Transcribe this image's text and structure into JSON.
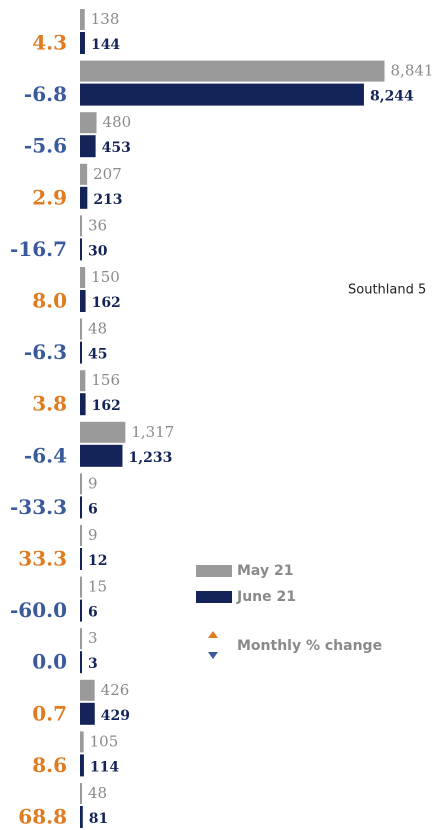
{
  "chart_data": {
    "type": "bar",
    "orientation": "horizontal",
    "xlim": [
      0,
      9000
    ],
    "series": [
      {
        "name": "May 21",
        "color": "#9a9a9a",
        "values": [
          138,
          8841,
          480,
          207,
          36,
          150,
          48,
          156,
          1317,
          9,
          9,
          15,
          3,
          426,
          105,
          48
        ],
        "value_labels": [
          "138",
          "8,841",
          "480",
          "207",
          "36",
          "150",
          "48",
          "156",
          "1,317",
          "9",
          "9",
          "15",
          "3",
          "426",
          "105",
          "48"
        ]
      },
      {
        "name": "June 21",
        "color": "#142458",
        "values": [
          144,
          8244,
          453,
          213,
          30,
          162,
          45,
          162,
          1233,
          6,
          12,
          6,
          3,
          429,
          114,
          81
        ],
        "value_labels": [
          "144",
          "8,244",
          "453",
          "213",
          "30",
          "162",
          "45",
          "162",
          "1,233",
          "6",
          "12",
          "6",
          "3",
          "429",
          "114",
          "81"
        ]
      }
    ],
    "change": {
      "name": "Monthly % change",
      "positive_color": "#e07b20",
      "negative_color": "#3a5a9c",
      "values": [
        4.3,
        -6.8,
        -5.6,
        2.9,
        -16.7,
        8.0,
        -6.3,
        3.8,
        -6.4,
        -33.3,
        33.3,
        -60.0,
        0.0,
        0.7,
        8.6,
        68.8
      ],
      "value_labels": [
        "4.3",
        "-6.8",
        "-5.6",
        "2.9",
        "-16.7",
        "8.0",
        "-6.3",
        "3.8",
        "-6.4",
        "-33.3",
        "33.3",
        "-60.0",
        "0.0",
        "0.7",
        "8.6",
        "68.8"
      ]
    },
    "annotation": "Southland 5"
  }
}
